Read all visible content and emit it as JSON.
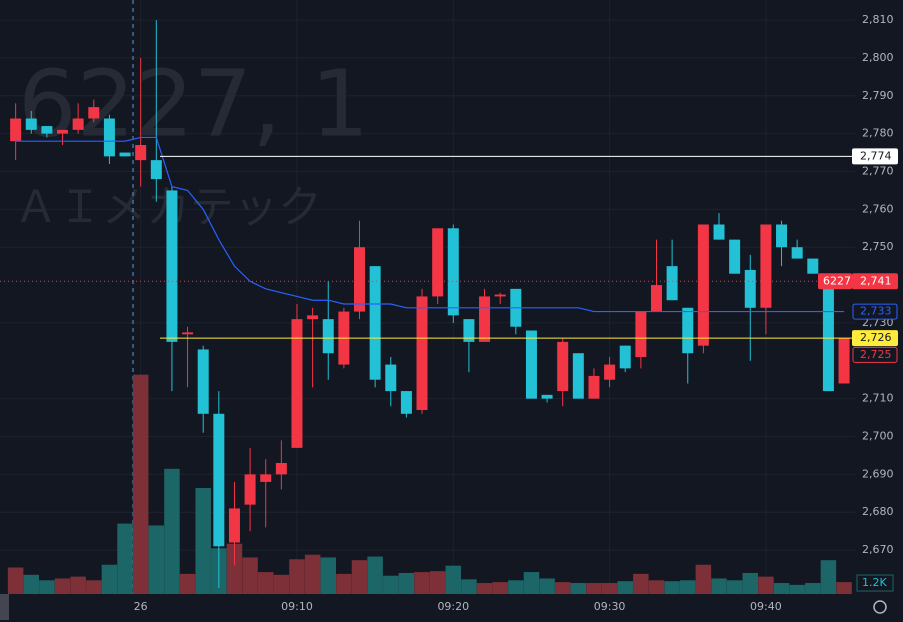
{
  "chart_data": {
    "type": "candlestick",
    "watermark": [
      "6227, 1",
      "ＡＩメカテック"
    ],
    "x": [
      -8,
      -7,
      -6,
      -5,
      -4,
      -3,
      -2,
      -1,
      0,
      1,
      2,
      3,
      4,
      5,
      6,
      7,
      8,
      9,
      10,
      11,
      12,
      13,
      14,
      15,
      16,
      17,
      18,
      19,
      20,
      21,
      22,
      23,
      24,
      25,
      26,
      27,
      28,
      29,
      30,
      31,
      32,
      33,
      34,
      35,
      36,
      37,
      38,
      39,
      40,
      41,
      42,
      43,
      44,
      45
    ],
    "open": [
      2778,
      2784,
      2782,
      2780,
      2781,
      2784,
      2784,
      2775,
      2773,
      2773,
      2765,
      2727,
      2723,
      2706,
      2672,
      2682,
      2688,
      2690,
      2697,
      2731,
      2731,
      2719,
      2733,
      2745,
      2719,
      2712,
      2707,
      2737,
      2755,
      2731,
      2725,
      2737,
      2739,
      2728,
      2711,
      2712,
      2722,
      2710,
      2715,
      2724,
      2721,
      2733,
      2745,
      2734,
      2724,
      2756,
      2752,
      2744,
      2734,
      2756,
      2750,
      2747,
      2739,
      2714
    ],
    "high": [
      2788,
      2786,
      2782,
      2781,
      2788,
      2789,
      2785,
      2775,
      2800,
      2810,
      2766,
      2729,
      2724,
      2712,
      2688,
      2697,
      2694,
      2699,
      2735,
      2734,
      2741,
      2734,
      2757,
      2745,
      2721,
      2712,
      2739,
      2755,
      2756,
      2731,
      2739,
      2738,
      2739,
      2728,
      2711,
      2726,
      2722,
      2718,
      2721,
      2724,
      2733,
      2752,
      2752,
      2734,
      2756,
      2759,
      2752,
      2748,
      2756,
      2757,
      2752,
      2747,
      2739,
      2726
    ],
    "low": [
      2773,
      2780,
      2779,
      2777,
      2780,
      2783,
      2772,
      2774,
      2766,
      2762,
      2712,
      2713,
      2701,
      2660,
      2666,
      2675,
      2676,
      2686,
      2697,
      2713,
      2715,
      2718,
      2731,
      2713,
      2708,
      2705,
      2706,
      2735,
      2730,
      2717,
      2725,
      2735,
      2727,
      2710,
      2709,
      2708,
      2710,
      2710,
      2713,
      2717,
      2718,
      2733,
      2736,
      2714,
      2722,
      2752,
      2743,
      2720,
      2727,
      2745,
      2747,
      2743,
      2712,
      2714
    ],
    "close": [
      2784,
      2781,
      2780,
      2781,
      2784,
      2787,
      2774,
      2774,
      2777,
      2768,
      2725,
      2727.5,
      2706,
      2671,
      2681,
      2690,
      2690,
      2693,
      2731,
      2732,
      2722,
      2733,
      2750,
      2715,
      2712,
      2706,
      2737,
      2755,
      2732,
      2725,
      2737,
      2737.5,
      2729,
      2710,
      2710,
      2725,
      2710,
      2716,
      2719,
      2718,
      2733,
      2740,
      2736,
      2722,
      2756,
      2752,
      2743,
      2734,
      2756,
      2750,
      2747,
      2743,
      2712,
      2726
    ],
    "volume": [
      2900,
      2100,
      1500,
      1700,
      1900,
      1500,
      3200,
      7700,
      24000,
      7500,
      13700,
      2200,
      11600,
      5000,
      5500,
      4000,
      2400,
      2100,
      3800,
      4300,
      4000,
      2200,
      3700,
      4100,
      2000,
      2300,
      2400,
      2500,
      3100,
      1600,
      1200,
      1300,
      1500,
      2400,
      1700,
      1300,
      1200,
      1200,
      1200,
      1400,
      2200,
      1500,
      1400,
      1500,
      3200,
      1700,
      1500,
      2300,
      1900,
      1200,
      1000,
      1200,
      3700,
      1300
    ],
    "vwap": [
      2778,
      2778,
      2778,
      2778,
      2778,
      2778,
      2778,
      2778,
      2779,
      2779,
      2766,
      2765,
      2760,
      2752,
      2745,
      2741,
      2739,
      2738,
      2737,
      2736,
      2736,
      2735,
      2735,
      2735,
      2735,
      2734,
      2734,
      2734,
      2734,
      2734,
      2734,
      2734,
      2734,
      2734,
      2734,
      2734,
      2734,
      2733,
      2733,
      2733,
      2733,
      2733,
      2733,
      2733,
      2733,
      2733,
      2733,
      2733,
      2733,
      2733,
      2733,
      2733,
      2733,
      2733
    ],
    "up_color": "#f23645",
    "down_color": "#22c1d6",
    "volume_up_color": "#7d3038",
    "volume_down_color": "#1d6668",
    "vwap_color": "#2962ff",
    "xlim": [
      -9,
      45.7
    ],
    "ylim": [
      2658.4,
      2815.3
    ],
    "vlim": [
      0,
      65000
    ],
    "xticks": [
      {
        "value": 0,
        "label": "26"
      },
      {
        "value": 10,
        "label": "09:10"
      },
      {
        "value": 20,
        "label": "09:20"
      },
      {
        "value": 30,
        "label": "09:30"
      },
      {
        "value": 40,
        "label": "09:40"
      }
    ],
    "yticks": [
      {
        "value": 2810,
        "label": "2,810"
      },
      {
        "value": 2800,
        "label": "2,800"
      },
      {
        "value": 2790,
        "label": "2,790"
      },
      {
        "value": 2780,
        "label": "2,780"
      },
      {
        "value": 2770,
        "label": "2,770"
      },
      {
        "value": 2760,
        "label": "2,760"
      },
      {
        "value": 2750,
        "label": "2,750"
      },
      {
        "value": 2730,
        "label": "2,730"
      },
      {
        "value": 2710,
        "label": "2,710"
      },
      {
        "value": 2700,
        "label": "2,700"
      },
      {
        "value": 2690,
        "label": "2,690"
      },
      {
        "value": 2680,
        "label": "2,680"
      },
      {
        "value": 2670,
        "label": "2,670"
      }
    ],
    "vticks": [
      {
        "value": 1200,
        "label": "1.2K"
      }
    ],
    "price_lines": [
      {
        "value": 2774,
        "label": "2,774",
        "color": "#ffffff",
        "text_color": "#131722",
        "line": "solid"
      },
      {
        "value": 2741,
        "label": "2,741",
        "symbol": "6227",
        "color": "#f23645",
        "text_color": "#ffffff",
        "line": "dotted"
      },
      {
        "value": 2726,
        "label": "2,726",
        "color": "#ffeb3b",
        "text_color": "#131722",
        "line": "solid"
      }
    ],
    "badges": [
      {
        "value": 2733,
        "label": "2,733",
        "color": "#2962ff"
      },
      {
        "value": 2725,
        "label": "2,725",
        "color": "#f23645"
      }
    ],
    "grid": true
  }
}
